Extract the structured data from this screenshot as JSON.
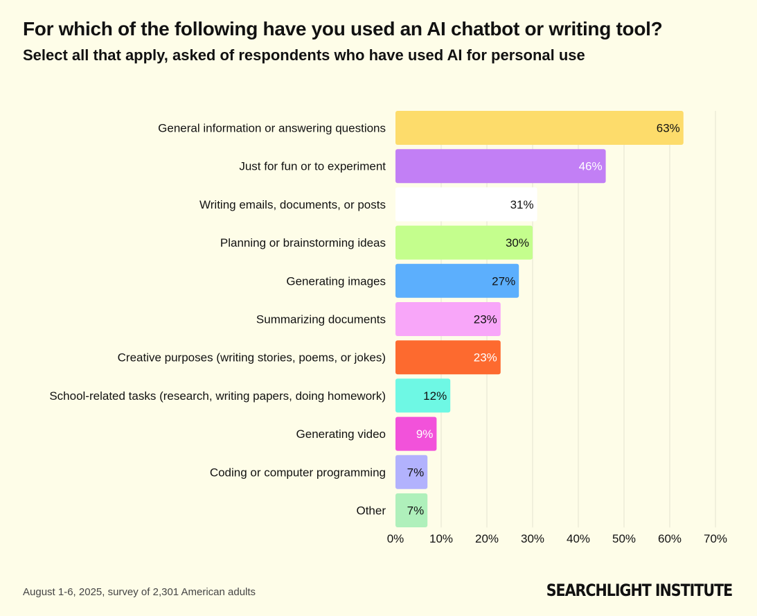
{
  "title": "For which of the following have you used an AI chatbot or writing tool?",
  "subtitle": "Select all that apply, asked of respondents who have used AI for personal use",
  "footnote": "August 1-6, 2025, survey of 2,301 American adults",
  "brand": "SEARCHLIGHT INSTITUTE",
  "chart_data": {
    "type": "bar",
    "orientation": "horizontal",
    "title": "For which of the following have you used an AI chatbot or writing tool?",
    "subtitle": "Select all that apply, asked of respondents who have used AI for personal use",
    "xlabel": "",
    "ylabel": "",
    "xlim": [
      0,
      70
    ],
    "xticks": [
      0,
      10,
      20,
      30,
      40,
      50,
      60,
      70
    ],
    "xtick_labels": [
      "0%",
      "10%",
      "20%",
      "30%",
      "40%",
      "50%",
      "60%",
      "70%"
    ],
    "grid": true,
    "categories": [
      "General information or answering questions",
      "Just for fun or to experiment",
      "Writing emails, documents, or posts",
      "Planning or brainstorming ideas",
      "Generating images",
      "Summarizing documents",
      "Creative purposes (writing stories, poems, or jokes)",
      "School-related tasks (research, writing papers, doing homework)",
      "Generating video",
      "Coding or computer programming",
      "Other"
    ],
    "values": [
      63,
      46,
      31,
      30,
      27,
      23,
      23,
      12,
      9,
      7,
      7
    ],
    "value_labels": [
      "63%",
      "46%",
      "31%",
      "30%",
      "27%",
      "23%",
      "23%",
      "12%",
      "9%",
      "7%",
      "7%"
    ],
    "colors": [
      "#fddc6b",
      "#c27ff5",
      "#ffffff",
      "#c4fe8d",
      "#5caffd",
      "#f8a6f9",
      "#fd6a2f",
      "#6ef8e4",
      "#f252da",
      "#b2b2fd",
      "#aff0bb"
    ],
    "label_colors": [
      "#111111",
      "#ffffff",
      "#111111",
      "#111111",
      "#111111",
      "#111111",
      "#ffffff",
      "#111111",
      "#ffffff",
      "#111111",
      "#111111"
    ]
  }
}
